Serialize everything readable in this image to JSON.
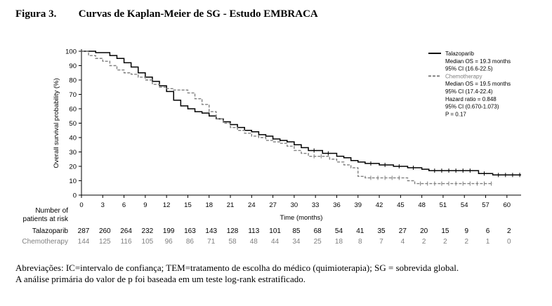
{
  "figure": {
    "label": "Figura 3.",
    "title": "Curvas de Kaplan-Meier de SG - Estudo EMBRACA"
  },
  "chart_data": {
    "type": "line",
    "xlabel": "Time (months)",
    "ylabel": "Overall survival probability (%)",
    "xlim": [
      0,
      62
    ],
    "ylim": [
      0,
      100
    ],
    "x_ticks": [
      0,
      3,
      6,
      9,
      12,
      15,
      18,
      21,
      24,
      27,
      30,
      33,
      36,
      39,
      42,
      45,
      48,
      51,
      54,
      57,
      60
    ],
    "y_ticks": [
      0,
      10,
      20,
      30,
      40,
      50,
      60,
      70,
      80,
      90,
      100
    ],
    "grid": false,
    "step": true,
    "legend_position": "top-right",
    "series": [
      {
        "name": "Talazoparib",
        "color": "#000000",
        "dash": "solid",
        "x": [
          0,
          2,
          4,
          5,
          6,
          7,
          8,
          9,
          10,
          11,
          12,
          13,
          14,
          15,
          16,
          17,
          18,
          19,
          20,
          21,
          22,
          23,
          24,
          25,
          26,
          27,
          28,
          29,
          30,
          31,
          32,
          33,
          34,
          35,
          36,
          37,
          38,
          39,
          40,
          41,
          42,
          43,
          44,
          45,
          46,
          47,
          48,
          49,
          50,
          51,
          52,
          53,
          54,
          55,
          56,
          57,
          58,
          59,
          60,
          61,
          62
        ],
        "y": [
          100,
          99,
          97,
          95,
          92,
          89,
          85,
          82,
          79,
          76,
          72,
          66,
          62,
          60,
          58,
          57,
          55,
          53,
          51,
          49,
          47,
          45,
          44,
          42,
          41,
          39,
          38,
          37,
          35,
          33,
          31,
          31,
          29,
          29,
          27,
          26,
          24,
          23,
          22,
          22,
          21,
          21,
          20,
          20,
          19,
          19,
          18,
          17,
          17,
          17,
          17,
          17,
          17,
          17,
          15,
          15,
          14,
          14,
          14,
          14,
          14
        ],
        "label_lines": [
          "Talazoparib",
          "Median OS  = 19.3 months",
          "95% CI (16.6-22.5)"
        ]
      },
      {
        "name": "Chemotherapy",
        "color": "#808080",
        "dash": "dashed",
        "x": [
          0,
          1,
          2,
          3,
          4,
          5,
          6,
          7,
          8,
          9,
          10,
          11,
          12,
          13,
          14,
          15,
          16,
          17,
          18,
          19,
          20,
          21,
          22,
          23,
          24,
          25,
          26,
          27,
          28,
          29,
          30,
          31,
          32,
          33,
          34,
          35,
          36,
          37,
          38,
          39,
          40,
          41,
          42,
          43,
          44,
          45,
          46,
          47,
          48,
          49,
          50,
          51,
          52,
          53,
          54,
          55,
          56,
          57,
          58
        ],
        "y": [
          100,
          97,
          95,
          93,
          90,
          87,
          85,
          84,
          82,
          80,
          77,
          75,
          74,
          73,
          73,
          71,
          67,
          63,
          58,
          53,
          50,
          47,
          45,
          43,
          41,
          40,
          38,
          37,
          36,
          34,
          31,
          29,
          27,
          27,
          27,
          25,
          23,
          21,
          19,
          13,
          12,
          12,
          12,
          12,
          12,
          12,
          10,
          8,
          8,
          8,
          8,
          8,
          8,
          8,
          8,
          8,
          8,
          8,
          8
        ],
        "label_lines": [
          "Chemotherapy",
          "Median OS  = 19.5 months",
          "95% CI (17.4-22.4)"
        ]
      }
    ],
    "legend_extra_lines": [
      "Hazard ratio = 0.848",
      "95% CI (0.670-1.073)",
      "P = 0.17"
    ],
    "risk_table": {
      "header": [
        "Number of",
        "patients at risk"
      ],
      "times": [
        0,
        3,
        6,
        9,
        12,
        15,
        18,
        21,
        24,
        27,
        30,
        33,
        36,
        39,
        42,
        45,
        48,
        51,
        54,
        57,
        60
      ],
      "rows": [
        {
          "name": "Talazoparib",
          "color": "#000000",
          "values": [
            "287",
            "260",
            "264",
            "232",
            "199",
            "163",
            "143",
            "128",
            "113",
            "101",
            "85",
            "68",
            "54",
            "41",
            "35",
            "27",
            "20",
            "15",
            "9",
            "6",
            "2"
          ]
        },
        {
          "name": "Chemotherapy",
          "color": "#808080",
          "values": [
            "144",
            "125",
            "116",
            "105",
            "96",
            "86",
            "71",
            "58",
            "48",
            "44",
            "34",
            "25",
            "18",
            "8",
            "7",
            "4",
            "2",
            "2",
            "2",
            "1",
            "0"
          ]
        }
      ]
    }
  },
  "footnotes": [
    "Abreviações: IC=intervalo de confiança; TEM=tratamento de escolha do médico (quimioterapia); SG = sobrevida global.",
    "A análise primária do valor de p foi baseada em um teste log-rank estratificado."
  ]
}
